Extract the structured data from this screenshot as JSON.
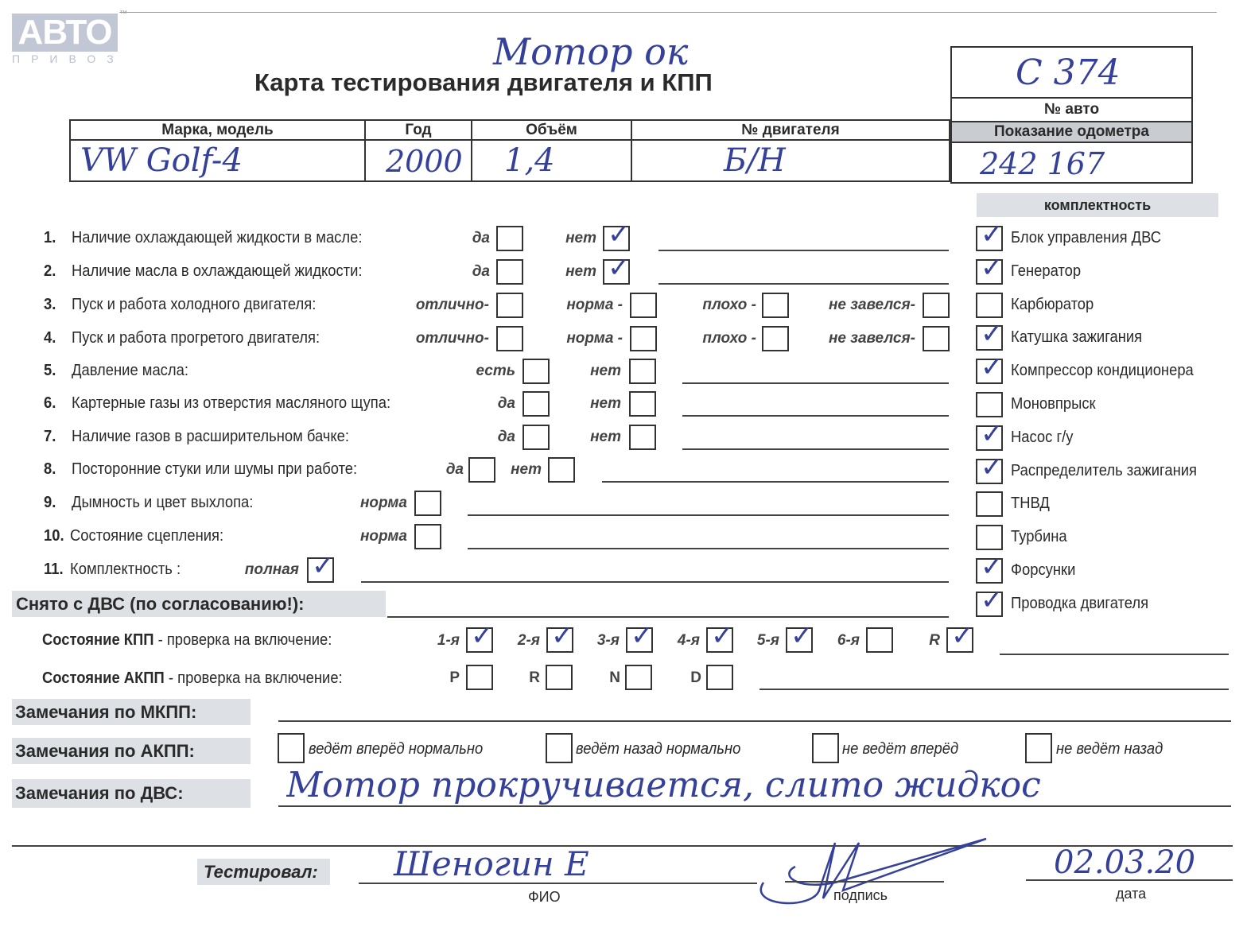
{
  "logo": {
    "main": "АВТО",
    "sub": "ПРИВОЗ",
    "tm": "™"
  },
  "handwritten_top": "Мотор ок",
  "title": "Карта тестирования двигателя  и КПП",
  "car_box": {
    "number_value": "С 374",
    "number_label": "№ авто",
    "odometer_label": "Показание одометра",
    "odometer_value": "242 167"
  },
  "vehicle_table": {
    "headers": [
      "Марка, модель",
      "Год",
      "Объём",
      "№ двигателя"
    ],
    "values": [
      "VW Golf-4",
      "2000",
      "1,4",
      "Б/Н"
    ]
  },
  "checklist": [
    {
      "num": "1.",
      "label": "Наличие охлаждающей жидкости в масле:",
      "options": [
        {
          "label": "да",
          "checked": false
        },
        {
          "label": "нет",
          "checked": true
        }
      ]
    },
    {
      "num": "2.",
      "label": "Наличие масла в охлаждающей жидкости:",
      "options": [
        {
          "label": "да",
          "checked": false
        },
        {
          "label": "нет",
          "checked": true
        }
      ]
    },
    {
      "num": "3.",
      "label": "Пуск и работа холодного двигателя:",
      "options": [
        {
          "label": "отлично-",
          "checked": false
        },
        {
          "label": "норма -",
          "checked": false
        },
        {
          "label": "плохо -",
          "checked": false
        },
        {
          "label": "не завелся-",
          "checked": false
        }
      ]
    },
    {
      "num": "4.",
      "label": "Пуск и работа прогретого двигателя:",
      "options": [
        {
          "label": "отлично-",
          "checked": false
        },
        {
          "label": "норма -",
          "checked": false
        },
        {
          "label": "плохо -",
          "checked": false
        },
        {
          "label": "не завелся-",
          "checked": false
        }
      ]
    },
    {
      "num": "5.",
      "label": "Давление масла:",
      "options": [
        {
          "label": "есть",
          "checked": false
        },
        {
          "label": "нет",
          "checked": false
        }
      ]
    },
    {
      "num": "6.",
      "label": "Картерные газы из отверстия масляного щупа:",
      "options": [
        {
          "label": "да",
          "checked": false
        },
        {
          "label": "нет",
          "checked": false
        }
      ]
    },
    {
      "num": "7.",
      "label": "Наличие газов в расширительном бачке:",
      "options": [
        {
          "label": "да",
          "checked": false
        },
        {
          "label": "нет",
          "checked": false
        }
      ]
    },
    {
      "num": "8.",
      "label": "Посторонние стуки или шумы при работе:",
      "options": [
        {
          "label": "да",
          "checked": false
        },
        {
          "label": "нет",
          "checked": false
        }
      ]
    },
    {
      "num": "9.",
      "label": "Дымность и цвет выхлопа:",
      "options": [
        {
          "label": "норма",
          "checked": false
        }
      ]
    },
    {
      "num": "10.",
      "label": "Состояние сцепления:",
      "options": [
        {
          "label": "норма",
          "checked": false
        }
      ]
    },
    {
      "num": "11.",
      "label": "Комплектность :",
      "options": [
        {
          "label": "полная",
          "checked": true
        }
      ]
    }
  ],
  "completeness": {
    "header": "комплектность",
    "items": [
      {
        "label": "Блок управления ДВС",
        "checked": true
      },
      {
        "label": "Генератор",
        "checked": true
      },
      {
        "label": "Карбюратор",
        "checked": false
      },
      {
        "label": "Катушка зажигания",
        "checked": true
      },
      {
        "label": "Компрессор кондиционера",
        "checked": true
      },
      {
        "label": "Моновпрыск",
        "checked": false
      },
      {
        "label": "Насос г/у",
        "checked": true
      },
      {
        "label": "Распределитель зажигания",
        "checked": true
      },
      {
        "label": "ТНВД",
        "checked": false
      },
      {
        "label": "Турбина",
        "checked": false
      },
      {
        "label": "Форсунки",
        "checked": true
      },
      {
        "label": "Проводка двигателя",
        "checked": true
      }
    ]
  },
  "removed_label": "Снято с ДВС (по согласованию!):",
  "kpp": {
    "label_bold": "Состояние КПП",
    "label_rest": " - проверка на включение:",
    "gears": [
      {
        "label": "1-я",
        "checked": true
      },
      {
        "label": "2-я",
        "checked": true
      },
      {
        "label": "3-я",
        "checked": true
      },
      {
        "label": "4-я",
        "checked": true
      },
      {
        "label": "5-я",
        "checked": true
      },
      {
        "label": "6-я",
        "checked": false
      },
      {
        "label": "R",
        "checked": true
      }
    ]
  },
  "akpp": {
    "label_bold": "Состояние АКПП",
    "label_rest": " - проверка на включение:",
    "gears": [
      {
        "label": "P",
        "checked": false
      },
      {
        "label": "R",
        "checked": false
      },
      {
        "label": "N",
        "checked": false
      },
      {
        "label": "D",
        "checked": false
      }
    ]
  },
  "remarks": {
    "mkpp_label": "Замечания по МКПП:",
    "akpp_label": "Замечания по АКПП:",
    "akpp_options": [
      "ведёт вперёд нормально",
      "ведёт назад нормально",
      "не ведёт вперёд",
      "не ведёт назад"
    ],
    "dvs_label": "Замечания по ДВС:",
    "dvs_value": "Мотор прокручивается, слито жидкос"
  },
  "signoff": {
    "label": "Тестировал:",
    "name_value": "Шеногин Е",
    "name_caption": "ФИО",
    "signature_caption": "подпись",
    "date_value": "02.03.20",
    "date_caption": "дата"
  },
  "colors": {
    "ink": "#34409a",
    "highlight": "#dde0e4",
    "logo": "#b9bfcf"
  }
}
